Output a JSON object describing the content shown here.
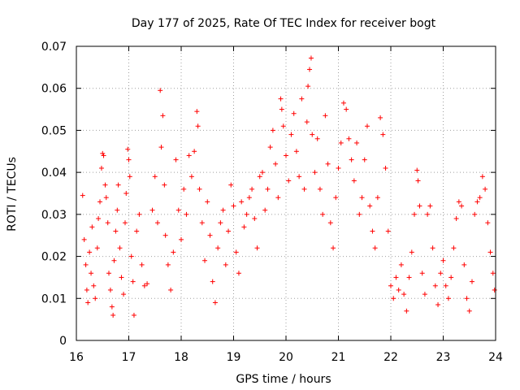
{
  "chart_data": {
    "type": "scatter",
    "title": "Day 177 of 2025, Rate Of TEC Index for receiver bogt",
    "xlabel": "GPS time / hours",
    "ylabel": "ROTI / TECUs",
    "xlim": [
      16,
      24
    ],
    "ylim": [
      0,
      0.07
    ],
    "x_ticks": [
      "16",
      "17",
      "18",
      "19",
      "20",
      "21",
      "22",
      "23",
      "24"
    ],
    "y_ticks": [
      "0",
      "0.01",
      "0.02",
      "0.03",
      "0.04",
      "0.05",
      "0.06",
      "0.07"
    ],
    "grid": true,
    "marker": "plus",
    "color": "#ff0000",
    "series": [
      {
        "values_note_free": true,
        "points": [
          [
            16.12,
            0.0345
          ],
          [
            16.15,
            0.024
          ],
          [
            16.18,
            0.018
          ],
          [
            16.2,
            0.012
          ],
          [
            16.22,
            0.009
          ],
          [
            16.25,
            0.021
          ],
          [
            16.28,
            0.016
          ],
          [
            16.3,
            0.027
          ],
          [
            16.33,
            0.013
          ],
          [
            16.36,
            0.01
          ],
          [
            16.4,
            0.022
          ],
          [
            16.42,
            0.029
          ],
          [
            16.45,
            0.033
          ],
          [
            16.48,
            0.041
          ],
          [
            16.5,
            0.0445
          ],
          [
            16.52,
            0.044
          ],
          [
            16.55,
            0.037
          ],
          [
            16.57,
            0.034
          ],
          [
            16.6,
            0.028
          ],
          [
            16.62,
            0.016
          ],
          [
            16.65,
            0.012
          ],
          [
            16.68,
            0.008
          ],
          [
            16.7,
            0.006
          ],
          [
            16.72,
            0.019
          ],
          [
            16.75,
            0.026
          ],
          [
            16.78,
            0.031
          ],
          [
            16.8,
            0.037
          ],
          [
            16.83,
            0.022
          ],
          [
            16.86,
            0.015
          ],
          [
            16.9,
            0.011
          ],
          [
            16.93,
            0.028
          ],
          [
            16.95,
            0.035
          ],
          [
            16.98,
            0.0455
          ],
          [
            17.0,
            0.043
          ],
          [
            17.02,
            0.039
          ],
          [
            17.05,
            0.02
          ],
          [
            17.08,
            0.014
          ],
          [
            17.1,
            0.006
          ],
          [
            17.15,
            0.026
          ],
          [
            17.2,
            0.03
          ],
          [
            17.25,
            0.018
          ],
          [
            17.3,
            0.013
          ],
          [
            17.35,
            0.0135
          ],
          [
            17.45,
            0.031
          ],
          [
            17.5,
            0.039
          ],
          [
            17.55,
            0.028
          ],
          [
            17.6,
            0.0595
          ],
          [
            17.62,
            0.046
          ],
          [
            17.65,
            0.0535
          ],
          [
            17.68,
            0.037
          ],
          [
            17.7,
            0.025
          ],
          [
            17.75,
            0.018
          ],
          [
            17.8,
            0.012
          ],
          [
            17.85,
            0.021
          ],
          [
            17.9,
            0.043
          ],
          [
            17.95,
            0.031
          ],
          [
            18.0,
            0.024
          ],
          [
            18.05,
            0.036
          ],
          [
            18.1,
            0.03
          ],
          [
            18.15,
            0.044
          ],
          [
            18.2,
            0.039
          ],
          [
            18.25,
            0.045
          ],
          [
            18.3,
            0.0545
          ],
          [
            18.32,
            0.051
          ],
          [
            18.35,
            0.036
          ],
          [
            18.4,
            0.028
          ],
          [
            18.45,
            0.019
          ],
          [
            18.5,
            0.033
          ],
          [
            18.55,
            0.025
          ],
          [
            18.6,
            0.014
          ],
          [
            18.65,
            0.009
          ],
          [
            18.7,
            0.022
          ],
          [
            18.75,
            0.028
          ],
          [
            18.8,
            0.031
          ],
          [
            18.85,
            0.018
          ],
          [
            18.9,
            0.026
          ],
          [
            18.95,
            0.037
          ],
          [
            19.0,
            0.032
          ],
          [
            19.05,
            0.021
          ],
          [
            19.1,
            0.016
          ],
          [
            19.15,
            0.033
          ],
          [
            19.2,
            0.027
          ],
          [
            19.25,
            0.03
          ],
          [
            19.3,
            0.034
          ],
          [
            19.35,
            0.036
          ],
          [
            19.4,
            0.029
          ],
          [
            19.45,
            0.022
          ],
          [
            19.5,
            0.039
          ],
          [
            19.55,
            0.04
          ],
          [
            19.6,
            0.031
          ],
          [
            19.65,
            0.036
          ],
          [
            19.7,
            0.046
          ],
          [
            19.75,
            0.05
          ],
          [
            19.8,
            0.042
          ],
          [
            19.85,
            0.034
          ],
          [
            19.9,
            0.0575
          ],
          [
            19.92,
            0.055
          ],
          [
            19.95,
            0.051
          ],
          [
            20.0,
            0.044
          ],
          [
            20.05,
            0.038
          ],
          [
            20.1,
            0.049
          ],
          [
            20.15,
            0.054
          ],
          [
            20.2,
            0.045
          ],
          [
            20.25,
            0.039
          ],
          [
            20.3,
            0.0575
          ],
          [
            20.35,
            0.036
          ],
          [
            20.4,
            0.052
          ],
          [
            20.42,
            0.0605
          ],
          [
            20.45,
            0.0645
          ],
          [
            20.48,
            0.0672
          ],
          [
            20.5,
            0.049
          ],
          [
            20.55,
            0.04
          ],
          [
            20.6,
            0.048
          ],
          [
            20.65,
            0.036
          ],
          [
            20.7,
            0.03
          ],
          [
            20.75,
            0.0535
          ],
          [
            20.8,
            0.042
          ],
          [
            20.85,
            0.028
          ],
          [
            20.9,
            0.022
          ],
          [
            20.95,
            0.034
          ],
          [
            21.0,
            0.041
          ],
          [
            21.05,
            0.047
          ],
          [
            21.1,
            0.0565
          ],
          [
            21.15,
            0.055
          ],
          [
            21.2,
            0.048
          ],
          [
            21.25,
            0.043
          ],
          [
            21.3,
            0.038
          ],
          [
            21.35,
            0.047
          ],
          [
            21.4,
            0.03
          ],
          [
            21.45,
            0.034
          ],
          [
            21.5,
            0.043
          ],
          [
            21.55,
            0.051
          ],
          [
            21.6,
            0.032
          ],
          [
            21.65,
            0.026
          ],
          [
            21.7,
            0.022
          ],
          [
            21.75,
            0.034
          ],
          [
            21.8,
            0.053
          ],
          [
            21.85,
            0.049
          ],
          [
            21.9,
            0.041
          ],
          [
            21.95,
            0.026
          ],
          [
            22.0,
            0.013
          ],
          [
            22.05,
            0.01
          ],
          [
            22.1,
            0.015
          ],
          [
            22.15,
            0.012
          ],
          [
            22.2,
            0.018
          ],
          [
            22.25,
            0.011
          ],
          [
            22.3,
            0.007
          ],
          [
            22.35,
            0.015
          ],
          [
            22.4,
            0.021
          ],
          [
            22.45,
            0.03
          ],
          [
            22.5,
            0.0405
          ],
          [
            22.52,
            0.038
          ],
          [
            22.55,
            0.032
          ],
          [
            22.6,
            0.016
          ],
          [
            22.65,
            0.011
          ],
          [
            22.7,
            0.03
          ],
          [
            22.75,
            0.032
          ],
          [
            22.8,
            0.022
          ],
          [
            22.85,
            0.013
          ],
          [
            22.9,
            0.0085
          ],
          [
            22.95,
            0.016
          ],
          [
            23.0,
            0.019
          ],
          [
            23.05,
            0.013
          ],
          [
            23.1,
            0.01
          ],
          [
            23.15,
            0.015
          ],
          [
            23.2,
            0.022
          ],
          [
            23.25,
            0.029
          ],
          [
            23.3,
            0.033
          ],
          [
            23.35,
            0.032
          ],
          [
            23.4,
            0.018
          ],
          [
            23.45,
            0.01
          ],
          [
            23.5,
            0.007
          ],
          [
            23.55,
            0.014
          ],
          [
            23.6,
            0.03
          ],
          [
            23.65,
            0.033
          ],
          [
            23.7,
            0.034
          ],
          [
            23.75,
            0.039
          ],
          [
            23.8,
            0.036
          ],
          [
            23.85,
            0.028
          ],
          [
            23.9,
            0.021
          ],
          [
            23.95,
            0.016
          ],
          [
            23.98,
            0.012
          ]
        ]
      }
    ]
  }
}
